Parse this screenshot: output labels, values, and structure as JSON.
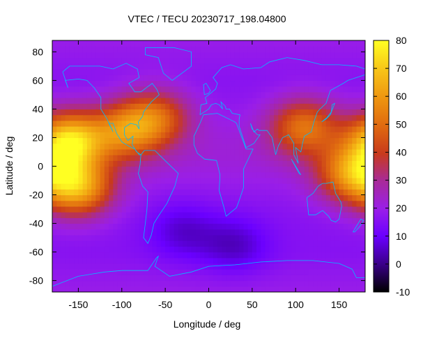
{
  "chart_data": {
    "type": "heatmap",
    "title": "VTEC / TECU 20230717_198.04800",
    "xlabel": "Longitude / deg",
    "ylabel": "Latitude / deg",
    "xlim": [
      -180,
      180
    ],
    "ylim": [
      -88,
      88
    ],
    "x_ticks": [
      -150,
      -100,
      -50,
      0,
      50,
      100,
      150
    ],
    "x_tick_labels": [
      "-150",
      "-100",
      "-50",
      "0",
      "50",
      "100",
      "150"
    ],
    "y_ticks": [
      -80,
      -60,
      -40,
      -20,
      0,
      20,
      40,
      60,
      80
    ],
    "y_tick_labels": [
      "-80",
      "-60",
      "-40",
      "-20",
      "0",
      "20",
      "40",
      "60",
      "80"
    ],
    "colorbar": {
      "range": [
        -10,
        80
      ],
      "ticks": [
        -10,
        0,
        10,
        20,
        30,
        40,
        50,
        60,
        70,
        80
      ],
      "tick_labels": [
        "-10",
        "0",
        "10",
        "20",
        "30",
        "40",
        "50",
        "60",
        "70",
        "80"
      ],
      "palette": "black-purple-red-orange-yellow"
    },
    "field_features": [
      {
        "description": "equatorial anomaly crest",
        "lon": -160,
        "lat": 18,
        "value": 70
      },
      {
        "description": "equatorial anomaly crest",
        "lon": -150,
        "lat": -15,
        "value": 62
      },
      {
        "description": "northern crest",
        "lon": -95,
        "lat": 25,
        "value": 50
      },
      {
        "description": "northern crest",
        "lon": -60,
        "lat": 35,
        "value": 45
      },
      {
        "description": "northern crest",
        "lon": 110,
        "lat": 28,
        "value": 50
      },
      {
        "description": "southern crest",
        "lon": 165,
        "lat": -5,
        "value": 55
      },
      {
        "description": "southern trough",
        "lon": -30,
        "lat": -45,
        "value": 8
      },
      {
        "description": "southern trough",
        "lon": 30,
        "lat": -55,
        "value": 7
      }
    ],
    "overlay": "coastlines",
    "overlay_color": "#00bfff"
  }
}
